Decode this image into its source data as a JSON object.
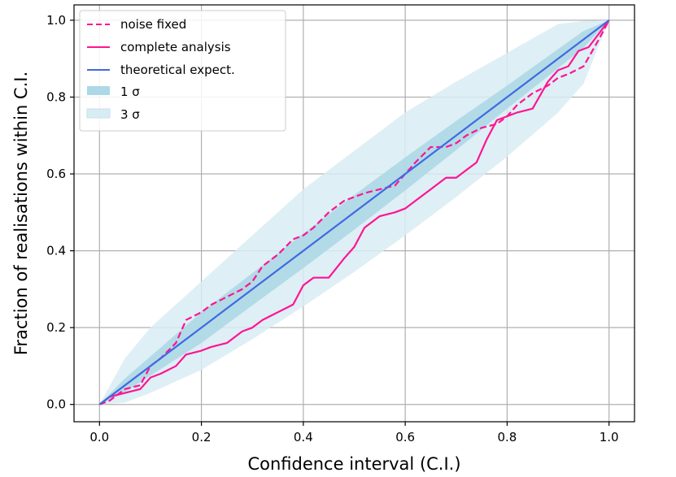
{
  "chart_data": {
    "type": "line",
    "title": "",
    "xlabel": "Confidence interval (C.I.)",
    "ylabel": "Fraction of realisations within C.I.",
    "xlim": [
      -0.05,
      1.05
    ],
    "ylim": [
      -0.045,
      1.04
    ],
    "xticks": [
      0.0,
      0.2,
      0.4,
      0.6,
      0.8,
      1.0
    ],
    "yticks": [
      0.0,
      0.2,
      0.4,
      0.6,
      0.8,
      1.0
    ],
    "xtick_labels": [
      "0.0",
      "0.2",
      "0.4",
      "0.6",
      "0.8",
      "1.0"
    ],
    "ytick_labels": [
      "0.0",
      "0.2",
      "0.4",
      "0.6",
      "0.8",
      "1.0"
    ],
    "grid": true,
    "legend_position": "top-left",
    "colors": {
      "noise_fixed": "#ff1493",
      "complete_analysis": "#ff1493",
      "theoretical": "#4169e1",
      "band1": "#add8e6",
      "band3": "#d8ecf3"
    },
    "legend": [
      {
        "key": "noise_fixed",
        "label": "noise fixed",
        "style": "dashed"
      },
      {
        "key": "complete_analysis",
        "label": "complete analysis",
        "style": "solid"
      },
      {
        "key": "theoretical",
        "label": "theoretical expect.",
        "style": "solid"
      },
      {
        "key": "band1",
        "label": "1 σ",
        "style": "band"
      },
      {
        "key": "band3",
        "label": "3 σ",
        "style": "band"
      }
    ],
    "bands": [
      {
        "name": "3 σ",
        "x": [
          0.0,
          0.05,
          0.1,
          0.2,
          0.3,
          0.4,
          0.5,
          0.6,
          0.7,
          0.8,
          0.9,
          0.95,
          1.0
        ],
        "lower": [
          0.0,
          0.005,
          0.03,
          0.09,
          0.17,
          0.255,
          0.345,
          0.44,
          0.54,
          0.645,
          0.76,
          0.835,
          1.0
        ],
        "upper": [
          0.0,
          0.12,
          0.2,
          0.32,
          0.44,
          0.56,
          0.66,
          0.76,
          0.84,
          0.915,
          0.99,
          0.998,
          1.0
        ]
      },
      {
        "name": "1 σ",
        "x": [
          0.0,
          0.05,
          0.1,
          0.2,
          0.3,
          0.4,
          0.5,
          0.6,
          0.7,
          0.8,
          0.9,
          0.95,
          1.0
        ],
        "lower": [
          0.0,
          0.032,
          0.075,
          0.16,
          0.258,
          0.355,
          0.455,
          0.557,
          0.662,
          0.77,
          0.875,
          0.928,
          1.0
        ],
        "upper": [
          0.0,
          0.068,
          0.125,
          0.24,
          0.342,
          0.445,
          0.545,
          0.643,
          0.738,
          0.83,
          0.925,
          0.972,
          1.0
        ]
      }
    ],
    "series": [
      {
        "name": "noise fixed",
        "key": "noise_fixed",
        "style": "dashed",
        "x": [
          0.0,
          0.02,
          0.05,
          0.08,
          0.1,
          0.12,
          0.15,
          0.17,
          0.2,
          0.22,
          0.25,
          0.28,
          0.3,
          0.32,
          0.35,
          0.38,
          0.4,
          0.42,
          0.45,
          0.48,
          0.5,
          0.52,
          0.55,
          0.58,
          0.6,
          0.62,
          0.65,
          0.68,
          0.7,
          0.72,
          0.75,
          0.78,
          0.8,
          0.82,
          0.85,
          0.88,
          0.9,
          0.92,
          0.95,
          0.98,
          1.0
        ],
        "y": [
          0.0,
          0.01,
          0.04,
          0.05,
          0.1,
          0.12,
          0.16,
          0.22,
          0.24,
          0.26,
          0.28,
          0.3,
          0.32,
          0.36,
          0.39,
          0.43,
          0.44,
          0.46,
          0.5,
          0.53,
          0.54,
          0.55,
          0.56,
          0.57,
          0.6,
          0.63,
          0.67,
          0.67,
          0.68,
          0.7,
          0.72,
          0.73,
          0.75,
          0.78,
          0.81,
          0.83,
          0.85,
          0.86,
          0.88,
          0.95,
          1.0
        ]
      },
      {
        "name": "complete analysis",
        "key": "complete_analysis",
        "style": "solid",
        "x": [
          0.0,
          0.02,
          0.05,
          0.08,
          0.1,
          0.12,
          0.15,
          0.17,
          0.2,
          0.22,
          0.25,
          0.28,
          0.3,
          0.32,
          0.35,
          0.38,
          0.4,
          0.42,
          0.45,
          0.48,
          0.5,
          0.52,
          0.55,
          0.58,
          0.6,
          0.62,
          0.65,
          0.68,
          0.7,
          0.72,
          0.74,
          0.76,
          0.78,
          0.8,
          0.82,
          0.85,
          0.88,
          0.9,
          0.92,
          0.94,
          0.96,
          1.0
        ],
        "y": [
          0.0,
          0.02,
          0.03,
          0.04,
          0.07,
          0.08,
          0.1,
          0.13,
          0.14,
          0.15,
          0.16,
          0.19,
          0.2,
          0.22,
          0.24,
          0.26,
          0.31,
          0.33,
          0.33,
          0.38,
          0.41,
          0.46,
          0.49,
          0.5,
          0.51,
          0.53,
          0.56,
          0.59,
          0.59,
          0.61,
          0.63,
          0.69,
          0.74,
          0.75,
          0.76,
          0.77,
          0.84,
          0.87,
          0.88,
          0.92,
          0.93,
          1.0
        ]
      },
      {
        "name": "theoretical expect.",
        "key": "theoretical",
        "style": "solid",
        "x": [
          0.0,
          1.0
        ],
        "y": [
          0.0,
          1.0
        ]
      }
    ]
  }
}
